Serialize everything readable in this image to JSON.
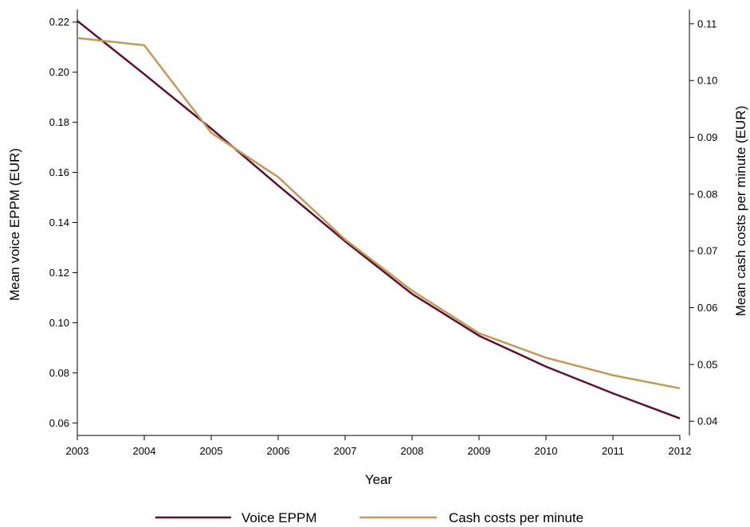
{
  "chart_data": {
    "type": "line",
    "x": [
      2003,
      2004,
      2005,
      2006,
      2007,
      2008,
      2009,
      2010,
      2011,
      2012
    ],
    "xlabel": "Year",
    "xlim": [
      2003,
      2012
    ],
    "ylabel_left": "Mean voice EPPM (EUR)",
    "ylim_left": [
      0.055,
      0.225
    ],
    "yticks_left": [
      "0.06",
      "0.08",
      "0.10",
      "0.12",
      "0.14",
      "0.16",
      "0.18",
      "0.20",
      "0.22"
    ],
    "ylabel_right": "Mean cash costs per minute (EUR)",
    "ylim_right": [
      0.0375,
      0.1125
    ],
    "yticks_right": [
      "0.04",
      "0.05",
      "0.06",
      "0.07",
      "0.08",
      "0.09",
      "0.10",
      "0.11"
    ],
    "grid": false,
    "legend_position": "bottom",
    "series": [
      {
        "name": "Voice EPPM",
        "axis": "left",
        "color": "#5c0f2e",
        "values": [
          0.2205,
          0.1992,
          0.1775,
          0.1548,
          0.1325,
          0.1115,
          0.0948,
          0.0825,
          0.0718,
          0.0618
        ]
      },
      {
        "name": "Cash costs per minute",
        "axis": "right",
        "color": "#c09a5b",
        "values": [
          0.1075,
          0.1062,
          0.0908,
          0.083,
          0.072,
          0.063,
          0.0555,
          0.0512,
          0.0481,
          0.0458
        ]
      }
    ]
  }
}
